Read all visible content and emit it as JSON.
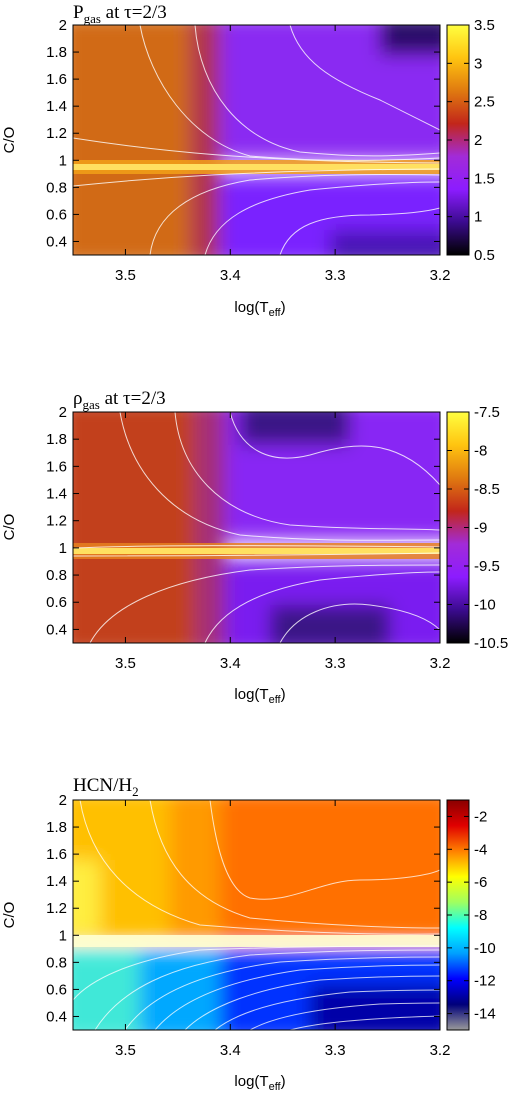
{
  "chart_data": [
    {
      "type": "heatmap",
      "title": "P",
      "title_sub": "gas",
      "title_rest": " at τ=2/3",
      "xlabel": "log(T",
      "xlabel_sub": "eff",
      "xlabel_rest": ")",
      "ylabel": "C/O",
      "xlim": [
        3.55,
        3.2
      ],
      "ylim": [
        0.3,
        2.0
      ],
      "x_ticks": [
        "3.5",
        "3.4",
        "3.3",
        "3.2"
      ],
      "y_ticks": [
        "0.4",
        "0.6",
        "0.8",
        "1",
        "1.2",
        "1.4",
        "1.6",
        "1.8",
        "2"
      ],
      "colorbar_ticks": [
        "0.5",
        "1",
        "1.5",
        "2",
        "2.5",
        "3",
        "3.5"
      ],
      "colorbar_range": [
        0.5,
        3.5
      ],
      "colormap": [
        "#000000",
        "#3b0b8f",
        "#8c1cff",
        "#a22bd8",
        "#c2261a",
        "#e07a10",
        "#ffc410",
        "#ffff40"
      ],
      "values": {
        "hot_side_level": 2.3,
        "cool_carbon_rich_level": 1.1,
        "cool_oxygen_rich_level": 1.0,
        "peak_at_co_1": 3.3
      }
    },
    {
      "type": "heatmap",
      "title": "ρ",
      "title_sub": "gas",
      "title_rest": " at τ=2/3",
      "xlabel": "log(T",
      "xlabel_sub": "eff",
      "xlabel_rest": ")",
      "ylabel": "C/O",
      "xlim": [
        3.55,
        3.2
      ],
      "ylim": [
        0.3,
        2.0
      ],
      "x_ticks": [
        "3.5",
        "3.4",
        "3.3",
        "3.2"
      ],
      "y_ticks": [
        "0.4",
        "0.6",
        "0.8",
        "1",
        "1.2",
        "1.4",
        "1.6",
        "1.8",
        "2"
      ],
      "colorbar_ticks": [
        "-7.5",
        "-8",
        "-8.5",
        "-9",
        "-9.5",
        "-10",
        "-10.5"
      ],
      "colorbar_range": [
        -10.5,
        -7.5
      ],
      "colormap": [
        "#000000",
        "#3b0b8f",
        "#8c1cff",
        "#a22bd8",
        "#c2261a",
        "#e07a10",
        "#ffc410",
        "#ffff40"
      ],
      "values": {
        "hot_side_level": -8.8,
        "cool_carbon_rich_level": -9.8,
        "cool_oxygen_rich_level": -9.9,
        "peak_at_co_1": -7.8
      }
    },
    {
      "type": "heatmap",
      "title": "HCN/H",
      "title_sub": "2",
      "title_rest": "",
      "xlabel": "log(T",
      "xlabel_sub": "eff",
      "xlabel_rest": ")",
      "ylabel": "C/O",
      "xlim": [
        3.55,
        3.2
      ],
      "ylim": [
        0.3,
        2.0
      ],
      "x_ticks": [
        "3.5",
        "3.4",
        "3.3",
        "3.2"
      ],
      "y_ticks": [
        "0.4",
        "0.6",
        "0.8",
        "1",
        "1.2",
        "1.4",
        "1.6",
        "1.8",
        "2"
      ],
      "colorbar_ticks": [
        "-2",
        "-4",
        "-6",
        "-8",
        "-10",
        "-12",
        "-14"
      ],
      "colorbar_range": [
        -15,
        -1
      ],
      "colormap": [
        "#9a9a9a",
        "#00007a",
        "#0000ff",
        "#00a0ff",
        "#00ffff",
        "#a0ff60",
        "#ffff00",
        "#ff8000",
        "#e00000",
        "#8a0000"
      ],
      "values": {
        "carbon_rich_hot": -5.0,
        "carbon_rich_cool": -3.8,
        "oxygen_rich_hot": -8.5,
        "oxygen_rich_cool": -12.8
      }
    }
  ]
}
